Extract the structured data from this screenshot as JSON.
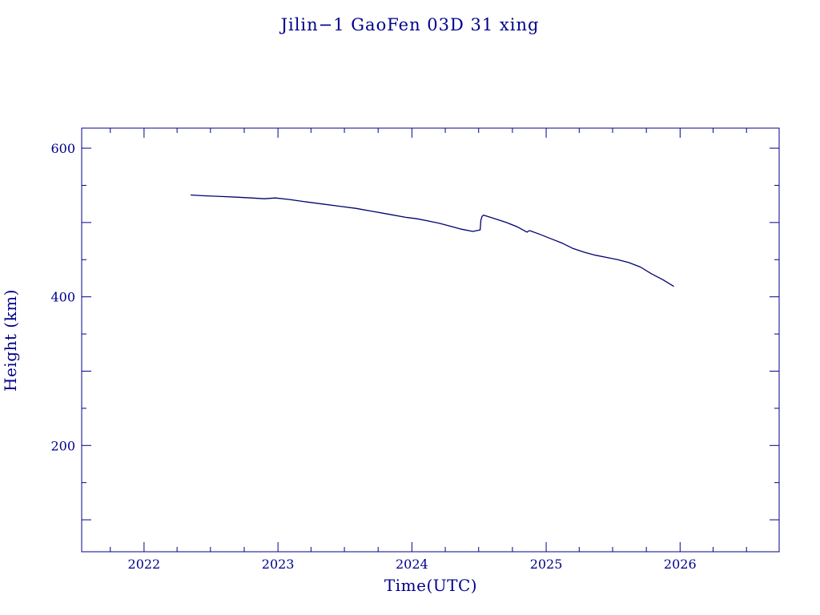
{
  "colors": {
    "ink": "#00008b",
    "line": "#00006e",
    "background": "#ffffff"
  },
  "chart_data": {
    "type": "line",
    "title": "Jilin−1 GaoFen 03D 31 xing",
    "xlabel": "Time(UTC)",
    "ylabel": "Height (km)",
    "xlim": [
      "2021-07-15",
      "2026-09-28"
    ],
    "ylim": [
      57,
      627
    ],
    "x_ticks": [
      "2022",
      "2023",
      "2024",
      "2025",
      "2026"
    ],
    "y_ticks": [
      "200",
      "400",
      "600"
    ],
    "grid": false,
    "legend": "none",
    "series": [
      {
        "x": [
          "2022-05-08",
          "2022-06-15",
          "2022-08-01",
          "2022-09-15",
          "2022-10-20",
          "2022-11-25",
          "2022-12-25",
          "2023-02-01",
          "2023-03-15",
          "2023-05-01",
          "2023-06-15",
          "2023-08-01",
          "2023-09-15",
          "2023-11-01",
          "2023-12-15",
          "2024-01-15",
          "2024-02-15",
          "2024-03-15",
          "2024-04-15",
          "2024-05-15",
          "2024-06-15",
          "2024-07-05",
          "2024-07-07",
          "2024-07-10",
          "2024-07-14",
          "2024-07-20",
          "2024-08-15",
          "2024-09-15",
          "2024-10-15",
          "2024-11-10",
          "2024-11-15",
          "2024-11-18",
          "2024-12-15",
          "2025-01-15",
          "2025-02-15",
          "2025-03-15",
          "2025-04-15",
          "2025-05-15",
          "2025-06-15",
          "2025-07-15",
          "2025-08-15",
          "2025-09-15",
          "2025-10-15",
          "2025-11-15",
          "2025-12-15"
        ],
        "y": [
          537,
          536,
          535,
          534,
          533,
          532,
          533,
          531,
          528,
          525,
          522,
          519,
          515,
          511,
          507,
          505,
          502,
          499,
          495,
          491,
          488,
          490,
          503,
          508,
          510,
          509,
          505,
          500,
          494,
          487,
          489,
          489,
          484,
          478,
          472,
          465,
          460,
          456,
          453,
          450,
          446,
          440,
          431,
          423,
          414
        ]
      }
    ]
  }
}
